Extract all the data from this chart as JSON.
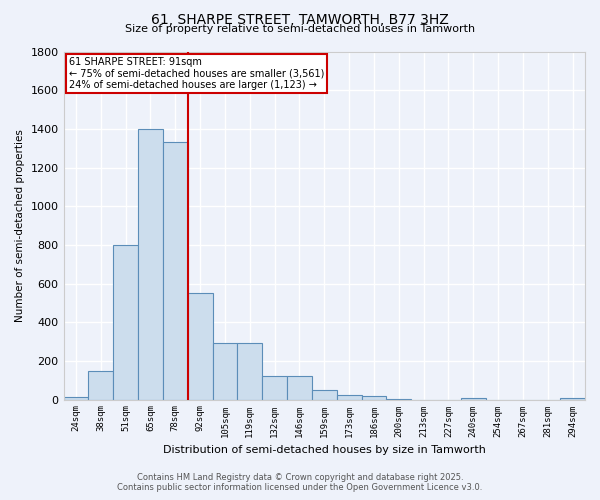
{
  "title_line1": "61, SHARPE STREET, TAMWORTH, B77 3HZ",
  "title_line2": "Size of property relative to semi-detached houses in Tamworth",
  "xlabel": "Distribution of semi-detached houses by size in Tamworth",
  "ylabel": "Number of semi-detached properties",
  "bar_color": "#ccdded",
  "bar_edge_color": "#5b8db8",
  "background_color": "#eef2fa",
  "grid_color": "#ffffff",
  "categories": [
    "24sqm",
    "38sqm",
    "51sqm",
    "65sqm",
    "78sqm",
    "92sqm",
    "105sqm",
    "119sqm",
    "132sqm",
    "146sqm",
    "159sqm",
    "173sqm",
    "186sqm",
    "200sqm",
    "213sqm",
    "227sqm",
    "240sqm",
    "254sqm",
    "267sqm",
    "281sqm",
    "294sqm"
  ],
  "values": [
    15,
    150,
    800,
    1400,
    1330,
    550,
    295,
    290,
    120,
    120,
    50,
    25,
    20,
    5,
    0,
    0,
    8,
    0,
    0,
    0,
    10
  ],
  "ylim": [
    0,
    1800
  ],
  "yticks": [
    0,
    200,
    400,
    600,
    800,
    1000,
    1200,
    1400,
    1600,
    1800
  ],
  "property_line_index": 5,
  "annotation_title": "61 SHARPE STREET: 91sqm",
  "annotation_line2": "← 75% of semi-detached houses are smaller (3,561)",
  "annotation_line3": "24% of semi-detached houses are larger (1,123) →",
  "annotation_box_color": "#ffffff",
  "annotation_box_edge": "#cc0000",
  "vline_color": "#cc0000",
  "footer_line1": "Contains HM Land Registry data © Crown copyright and database right 2025.",
  "footer_line2": "Contains public sector information licensed under the Open Government Licence v3.0."
}
